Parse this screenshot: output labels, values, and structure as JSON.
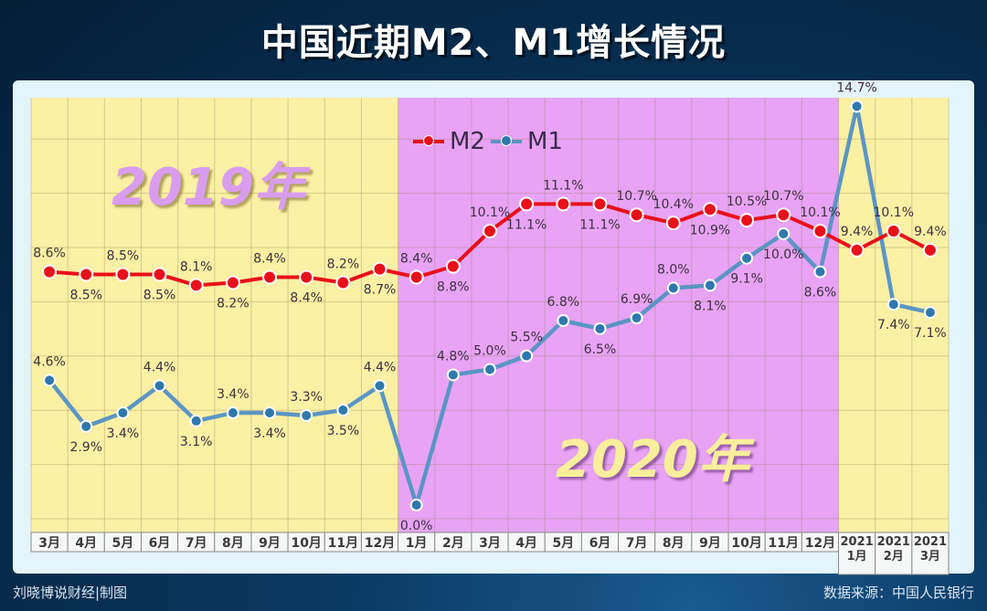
{
  "title": "中国近期M2、M1增长情况",
  "footer": {
    "credit": "刘晓博说财经|制图",
    "source": "数据来源：中国人民银行"
  },
  "year_labels": {
    "y2019": "2019年",
    "y2020": "2020年"
  },
  "legend": {
    "m2": "M2",
    "m1": "M1"
  },
  "colors": {
    "m2": "#e8101a",
    "m1": "#5b95c4",
    "m1_marker": "#2e78ad",
    "bg_2019": "#fbf0a4",
    "bg_2020": "#e8a3f5",
    "bg_2021": "#fbf0a4",
    "label_text": "#3d3040"
  },
  "chart_data": {
    "type": "line",
    "title": "中国近期M2、M1增长情况",
    "xlabel": "",
    "ylabel": "",
    "ylim": [
      0,
      15
    ],
    "grid": true,
    "legend_position": "top-center",
    "categories": [
      "3月",
      "4月",
      "5月",
      "6月",
      "7月",
      "8月",
      "9月",
      "10月",
      "11月",
      "12月",
      "1月",
      "2月",
      "3月",
      "4月",
      "5月",
      "6月",
      "7月",
      "8月",
      "9月",
      "10月",
      "11月",
      "12月",
      "2021 1月",
      "2021 2月",
      "2021 3月"
    ],
    "periods": [
      {
        "label": "2019年",
        "from": 0,
        "to": 9
      },
      {
        "label": "2020年",
        "from": 10,
        "to": 21
      },
      {
        "label": "2021",
        "from": 22,
        "to": 24
      }
    ],
    "series": [
      {
        "name": "M2",
        "values": [
          8.6,
          8.5,
          8.5,
          8.5,
          8.1,
          8.2,
          8.4,
          8.4,
          8.2,
          8.7,
          8.4,
          8.8,
          10.1,
          11.1,
          11.1,
          11.1,
          10.7,
          10.4,
          10.9,
          10.5,
          10.7,
          10.1,
          9.4,
          10.1,
          9.4
        ]
      },
      {
        "name": "M1",
        "values": [
          4.6,
          2.9,
          3.4,
          4.4,
          3.1,
          3.4,
          3.4,
          3.3,
          3.5,
          4.4,
          0.0,
          4.8,
          5.0,
          5.5,
          6.8,
          6.5,
          6.9,
          8.0,
          8.1,
          9.1,
          10.0,
          8.6,
          14.7,
          7.4,
          7.1
        ]
      }
    ],
    "annotations": [
      "2019年",
      "2020年"
    ]
  },
  "m2_labels": [
    "8.6%",
    "8.5%",
    "8.5%",
    "8.5%",
    "8.1%",
    "8.2%",
    "8.4%",
    "8.4%",
    "8.2%",
    "8.7%",
    "8.4%",
    "8.8%",
    "10.1%",
    "11.1%",
    "11.1%",
    "11.1%",
    "10.7%",
    "10.4%",
    "10.9%",
    "10.5%",
    "10.7%",
    "10.1%",
    "9.4%",
    "10.1%",
    "9.4%"
  ],
  "m1_labels": [
    "4.6%",
    "2.9%",
    "3.4%",
    "4.4%",
    "3.1%",
    "3.4%",
    "3.4%",
    "3.3%",
    "3.5%",
    "4.4%",
    "0.0%",
    "4.8%",
    "5.0%",
    "5.5%",
    "6.8%",
    "6.5%",
    "6.9%",
    "8.0%",
    "8.1%",
    "9.1%",
    "10.0%",
    "8.6%",
    "14.7%",
    "7.4%",
    "7.1%"
  ],
  "axis_labels": [
    {
      "line1": "3月"
    },
    {
      "line1": "4月"
    },
    {
      "line1": "5月"
    },
    {
      "line1": "6月"
    },
    {
      "line1": "7月"
    },
    {
      "line1": "8月"
    },
    {
      "line1": "9月"
    },
    {
      "line1": "10月"
    },
    {
      "line1": "11月"
    },
    {
      "line1": "12月"
    },
    {
      "line1": "1月"
    },
    {
      "line1": "2月"
    },
    {
      "line1": "3月"
    },
    {
      "line1": "4月"
    },
    {
      "line1": "5月"
    },
    {
      "line1": "6月"
    },
    {
      "line1": "7月"
    },
    {
      "line1": "8月"
    },
    {
      "line1": "9月"
    },
    {
      "line1": "10月"
    },
    {
      "line1": "11月"
    },
    {
      "line1": "12月"
    },
    {
      "line1": "2021",
      "line2": "1月"
    },
    {
      "line1": "2021",
      "line2": "2月"
    },
    {
      "line1": "2021",
      "line2": "3月"
    }
  ],
  "watermark": "刘晓博说财经"
}
